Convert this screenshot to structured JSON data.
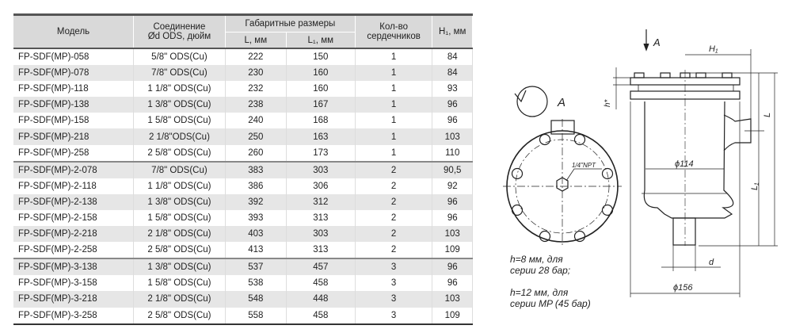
{
  "table": {
    "headers": {
      "model": "Модель",
      "connection_line1": "Соединение",
      "connection_line2": "Ød ODS, дюйм",
      "dimensions": "Габаритные размеры",
      "L": "L, мм",
      "L1": "L₁, мм",
      "cores_line1": "Кол-во",
      "cores_line2": "сердечников",
      "H1": "H₁, мм"
    },
    "rows": [
      [
        "FP-SDF(MP)-058",
        "5/8\" ODS(Cu)",
        "222",
        "150",
        "1",
        "84"
      ],
      [
        "FP-SDF(MP)-078",
        "7/8\" ODS(Cu)",
        "230",
        "160",
        "1",
        "84"
      ],
      [
        "FP-SDF(MP)-118",
        "1 1/8\" ODS(Cu)",
        "232",
        "160",
        "1",
        "93"
      ],
      [
        "FP-SDF(MP)-138",
        "1 3/8\" ODS(Cu)",
        "238",
        "167",
        "1",
        "96"
      ],
      [
        "FP-SDF(MP)-158",
        "1 5/8\" ODS(Cu)",
        "240",
        "168",
        "1",
        "96"
      ],
      [
        "FP-SDF(MP)-218",
        "2 1/8\"ODS(Cu)",
        "250",
        "163",
        "1",
        "103"
      ],
      [
        "FP-SDF(MP)-258",
        "2 5/8\" ODS(Cu)",
        "260",
        "173",
        "1",
        "110"
      ],
      [
        "FP-SDF(MP)-2-078",
        "7/8\" ODS(Cu)",
        "383",
        "303",
        "2",
        "90,5"
      ],
      [
        "FP-SDF(MP)-2-118",
        "1 1/8\" ODS(Cu)",
        "386",
        "306",
        "2",
        "92"
      ],
      [
        "FP-SDF(MP)-2-138",
        "1 3/8\" ODS(Cu)",
        "392",
        "312",
        "2",
        "96"
      ],
      [
        "FP-SDF(MP)-2-158",
        "1 5/8\" ODS(Cu)",
        "393",
        "313",
        "2",
        "96"
      ],
      [
        "FP-SDF(MP)-2-218",
        "2 1/8\" ODS(Cu)",
        "403",
        "303",
        "2",
        "103"
      ],
      [
        "FP-SDF(MP)-2-258",
        "2 5/8\" ODS(Cu)",
        "413",
        "313",
        "2",
        "109"
      ],
      [
        "FP-SDF(MP)-3-138",
        "1 3/8\" ODS(Cu)",
        "537",
        "457",
        "3",
        "96"
      ],
      [
        "FP-SDF(MP)-3-158",
        "1 5/8\" ODS(Cu)",
        "538",
        "458",
        "3",
        "96"
      ],
      [
        "FP-SDF(MP)-3-218",
        "2 1/8\" ODS(Cu)",
        "548",
        "448",
        "3",
        "103"
      ],
      [
        "FP-SDF(MP)-3-258",
        "2 5/8\" ODS(Cu)",
        "558",
        "458",
        "3",
        "109"
      ]
    ]
  },
  "drawing": {
    "view_label": "A",
    "arrow_label": "A",
    "npt_label": "1/4\"NPT",
    "H1": "H₁",
    "h_star": "h*",
    "L": "L",
    "L1": "L₁",
    "d114": "ϕ114",
    "d156": "ϕ156",
    "d": "d",
    "notes": [
      "h=8 мм, для",
      "серии 28 бар;",
      "h=12 мм, для",
      "серии MP (45 бар)"
    ]
  }
}
